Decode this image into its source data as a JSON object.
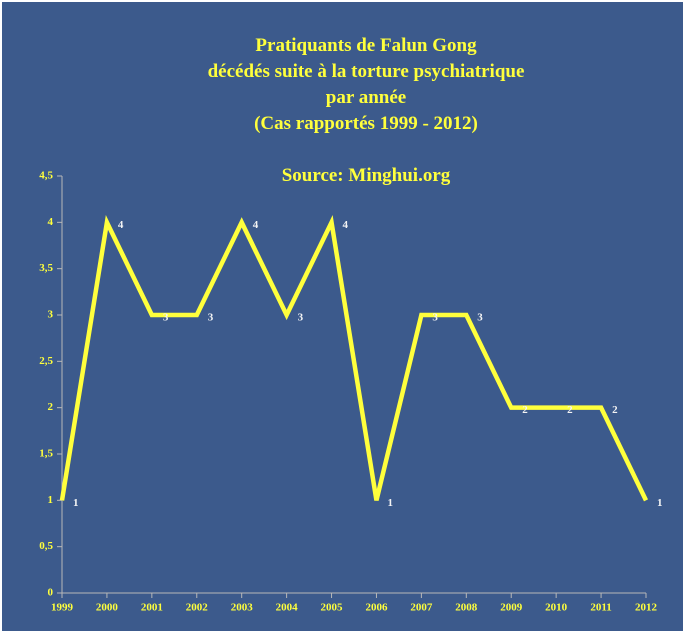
{
  "chart_data": {
    "type": "line",
    "title": [
      "Pratiquants de Falun Gong",
      "décédés suite à la torture psychiatrique",
      "par année",
      "(Cas rapportés 1999 - 2012)"
    ],
    "subtitle": "Source: Minghui.org",
    "categories": [
      "1999",
      "2000",
      "2001",
      "2002",
      "2003",
      "2004",
      "2005",
      "2006",
      "2007",
      "2008",
      "2009",
      "2010",
      "2011",
      "2012"
    ],
    "values": [
      1,
      4,
      3,
      3,
      4,
      3,
      4,
      1,
      3,
      3,
      2,
      2,
      2,
      1
    ],
    "color": "#ffff3c",
    "ylim": [
      0,
      4.5
    ],
    "yticks": [
      0,
      {
        "value": 0.5,
        "label": "0,5"
      },
      1,
      {
        "value": 1.5,
        "label": "1,5"
      },
      2,
      {
        "value": 2.5,
        "label": "2,5"
      },
      3,
      {
        "value": 3.5,
        "label": "3,5"
      },
      4,
      {
        "value": 4.5,
        "label": "4,5"
      }
    ]
  }
}
